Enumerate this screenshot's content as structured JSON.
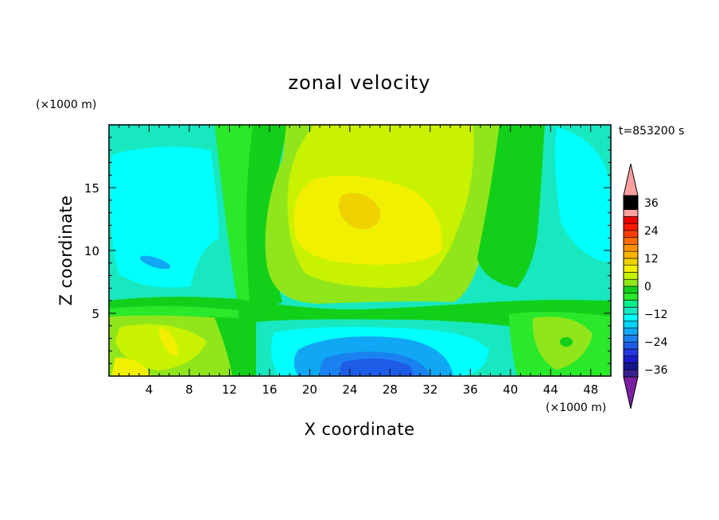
{
  "chart_data": {
    "type": "heatmap",
    "title": "zonal velocity",
    "xlabel": "X coordinate",
    "ylabel": "Z coordinate",
    "x_unit": "(×1000 m)",
    "y_unit": "(×1000 m)",
    "time_label": "t=853200 s",
    "xlim": [
      0,
      50
    ],
    "ylim": [
      0,
      20
    ],
    "x_ticks": [
      4,
      8,
      12,
      16,
      20,
      24,
      28,
      32,
      36,
      40,
      44,
      48
    ],
    "y_ticks": [
      5,
      10,
      15
    ],
    "colorbar": {
      "levels": [
        -42,
        -39,
        -36,
        -33,
        -30,
        -27,
        -24,
        -21,
        -18,
        -15,
        -12,
        -9,
        -6,
        -3,
        0,
        3,
        6,
        9,
        12,
        15,
        18,
        21,
        24,
        27,
        30,
        33,
        36,
        39,
        42
      ],
      "colors": [
        "#7a1fa2",
        "#3a1f8f",
        "#16168f",
        "#1a1acb",
        "#2436e0",
        "#1e5ce8",
        "#1a82f0",
        "#10a8f5",
        "#00d4ff",
        "#00ffff",
        "#18e8c0",
        "#00ee8c",
        "#2ae82a",
        "#12d01a",
        "#90e61a",
        "#c8f200",
        "#f0f000",
        "#f0d200",
        "#ffb400",
        "#ff9000",
        "#ff6a00",
        "#ff3c00",
        "#ff1800",
        "#ee0000",
        "#ffa0a0"
      ],
      "tick_values": [
        36,
        24,
        12,
        0,
        -12,
        -24,
        -36
      ],
      "tick_labels": [
        "36",
        "24",
        "12",
        "0",
        "−12",
        "−24",
        "−36"
      ]
    },
    "field_summary": {
      "upper_jet_core": {
        "x": 26,
        "z": 13,
        "value": 16
      },
      "lower_jet_core": {
        "x": 27,
        "z": 1,
        "value": -22
      },
      "upper_left_min": {
        "x": 5,
        "z": 9.5,
        "value": -12
      }
    }
  }
}
